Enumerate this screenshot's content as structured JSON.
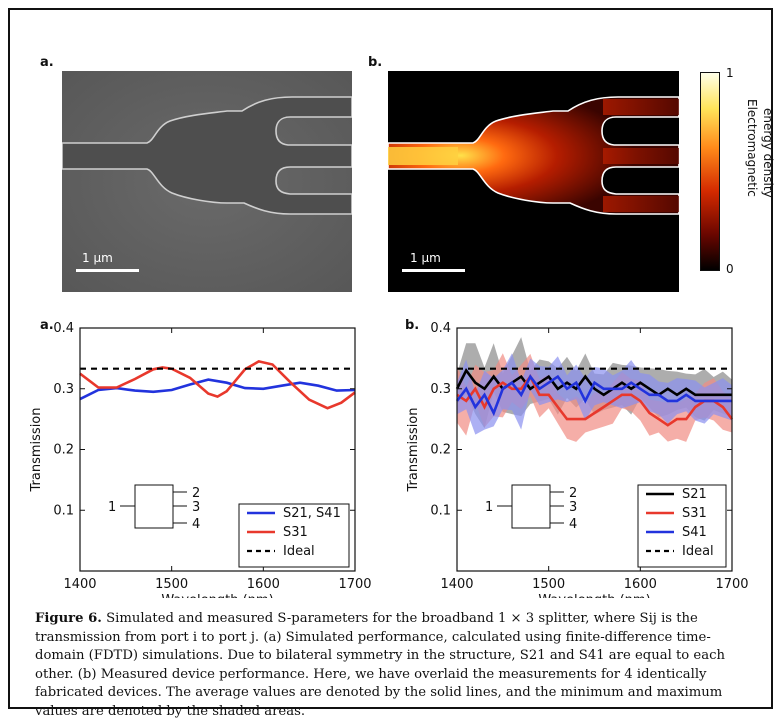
{
  "figure": {
    "panel_top_a": "a.",
    "panel_top_b": "b.",
    "panel_bottom_a": "a.",
    "panel_bottom_b": "b.",
    "scalebar_label": "1 μm",
    "colorbar": {
      "max_label": "1",
      "min_label": "0",
      "title_line1": "Electromagnetic",
      "title_line2": "energy density"
    },
    "port_labels": [
      "1",
      "2",
      "3",
      "4"
    ]
  },
  "caption": {
    "label": "Figure 6.",
    "text": "Simulated and measured S-parameters for the broadband 1 × 3 splitter, where Sij is the transmission from port i to port j. (a) Simulated performance, calculated using finite-difference time-domain (FDTD) simulations. Due to bilateral symmetry in the structure, S21 and S41 are equal to each other. (b) Measured device performance. Here, we have overlaid the measurements for 4 identically fabricated devices. The average values are denoted by the solid lines, and the minimum and maximum values are denoted by the shaded areas."
  },
  "chart_data": [
    {
      "type": "line",
      "xlabel": "Wavelength (nm)",
      "ylabel": "Transmission",
      "xlim": [
        1400,
        1700
      ],
      "ylim": [
        0.0,
        0.4
      ],
      "xticks": [
        "1400",
        "1500",
        "1600",
        "1700"
      ],
      "yticks": [
        "0.1",
        "0.2",
        "0.3",
        "0.4"
      ],
      "legend_position": "bottom-right",
      "series": [
        {
          "name": "S21, S41",
          "color": "#2233dd",
          "x": [
            1400,
            1420,
            1440,
            1460,
            1480,
            1500,
            1520,
            1540,
            1560,
            1580,
            1600,
            1620,
            1640,
            1660,
            1680,
            1700
          ],
          "y": [
            0.283,
            0.298,
            0.301,
            0.297,
            0.295,
            0.298,
            0.307,
            0.315,
            0.31,
            0.301,
            0.3,
            0.305,
            0.31,
            0.305,
            0.297,
            0.298
          ]
        },
        {
          "name": "S31",
          "color": "#e8382c",
          "x": [
            1400,
            1420,
            1440,
            1460,
            1480,
            1490,
            1500,
            1520,
            1540,
            1550,
            1560,
            1580,
            1595,
            1610,
            1630,
            1650,
            1670,
            1685,
            1700
          ],
          "y": [
            0.325,
            0.302,
            0.302,
            0.316,
            0.332,
            0.335,
            0.333,
            0.318,
            0.292,
            0.287,
            0.296,
            0.332,
            0.345,
            0.34,
            0.31,
            0.282,
            0.268,
            0.277,
            0.294
          ]
        },
        {
          "name": "Ideal",
          "color": "#000000",
          "style": "dashed",
          "x": [
            1400,
            1700
          ],
          "y": [
            0.333,
            0.333
          ]
        }
      ]
    },
    {
      "type": "line",
      "xlabel": "Wavelength (nm)",
      "ylabel": "Transmission",
      "xlim": [
        1400,
        1700
      ],
      "ylim": [
        0.0,
        0.4
      ],
      "xticks": [
        "1400",
        "1500",
        "1600",
        "1700"
      ],
      "yticks": [
        "0.1",
        "0.2",
        "0.3",
        "0.4"
      ],
      "legend_position": "bottom-right",
      "series": [
        {
          "name": "S21",
          "color": "#000000",
          "x": [
            1400,
            1410,
            1420,
            1430,
            1440,
            1450,
            1460,
            1470,
            1480,
            1490,
            1500,
            1510,
            1520,
            1530,
            1540,
            1550,
            1560,
            1570,
            1580,
            1590,
            1600,
            1610,
            1620,
            1630,
            1640,
            1650,
            1660,
            1670,
            1680,
            1690,
            1700
          ],
          "y": [
            0.3,
            0.33,
            0.31,
            0.3,
            0.32,
            0.3,
            0.31,
            0.32,
            0.3,
            0.31,
            0.32,
            0.3,
            0.31,
            0.3,
            0.32,
            0.3,
            0.29,
            0.3,
            0.31,
            0.3,
            0.31,
            0.3,
            0.29,
            0.3,
            0.29,
            0.3,
            0.29,
            0.29,
            0.29,
            0.29,
            0.29
          ]
        },
        {
          "name": "S31",
          "color": "#e8382c",
          "x": [
            1400,
            1410,
            1420,
            1430,
            1440,
            1450,
            1460,
            1470,
            1480,
            1490,
            1500,
            1510,
            1520,
            1530,
            1540,
            1550,
            1560,
            1570,
            1580,
            1590,
            1600,
            1610,
            1620,
            1630,
            1640,
            1650,
            1660,
            1670,
            1680,
            1690,
            1700
          ],
          "y": [
            0.29,
            0.28,
            0.3,
            0.27,
            0.3,
            0.31,
            0.3,
            0.3,
            0.32,
            0.29,
            0.29,
            0.27,
            0.25,
            0.25,
            0.25,
            0.26,
            0.27,
            0.28,
            0.29,
            0.29,
            0.28,
            0.26,
            0.25,
            0.24,
            0.25,
            0.25,
            0.27,
            0.28,
            0.28,
            0.27,
            0.25
          ]
        },
        {
          "name": "S41",
          "color": "#2233dd",
          "x": [
            1400,
            1410,
            1420,
            1430,
            1440,
            1450,
            1460,
            1470,
            1480,
            1490,
            1500,
            1510,
            1520,
            1530,
            1540,
            1550,
            1560,
            1570,
            1580,
            1590,
            1600,
            1610,
            1620,
            1630,
            1640,
            1650,
            1660,
            1670,
            1680,
            1690,
            1700
          ],
          "y": [
            0.28,
            0.3,
            0.27,
            0.29,
            0.26,
            0.3,
            0.31,
            0.29,
            0.32,
            0.3,
            0.31,
            0.32,
            0.3,
            0.31,
            0.28,
            0.31,
            0.3,
            0.3,
            0.3,
            0.31,
            0.3,
            0.29,
            0.29,
            0.28,
            0.28,
            0.29,
            0.28,
            0.28,
            0.28,
            0.28,
            0.28
          ]
        },
        {
          "name": "Ideal",
          "color": "#000000",
          "style": "dashed",
          "x": [
            1400,
            1700
          ],
          "y": [
            0.333,
            0.333
          ]
        }
      ]
    }
  ]
}
